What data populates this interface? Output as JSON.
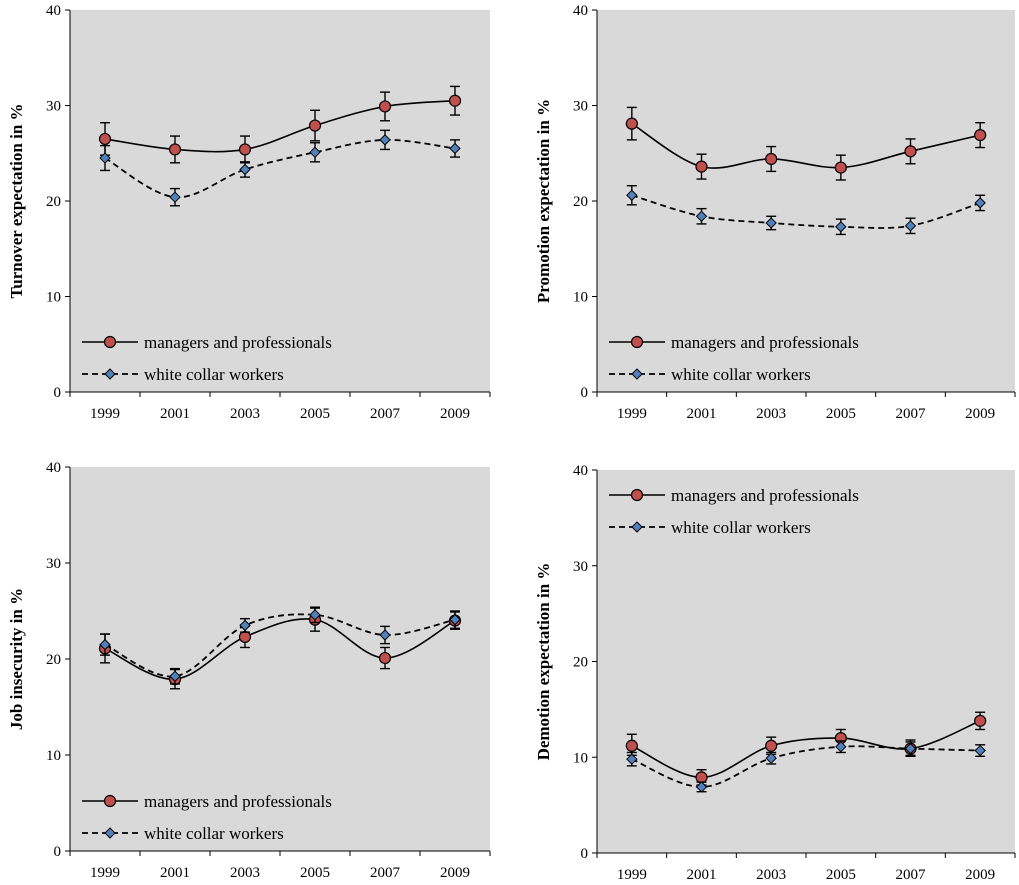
{
  "colors": {
    "plot_bg": "#d9d9d9",
    "managers_line": "#000000",
    "managers_marker_fill": "#c0504d",
    "white_collar_line": "#000000",
    "white_collar_marker_fill": "#4f81bd"
  },
  "chart_data": [
    {
      "type": "line",
      "ylabel": "Turnover expectation in %",
      "xlabel": "",
      "categories": [
        "1999",
        "2001",
        "2003",
        "2005",
        "2007",
        "2009"
      ],
      "ylim": [
        0,
        40
      ],
      "yticks": [
        "0",
        "10",
        "20",
        "30",
        "40"
      ],
      "grid": false,
      "legend_position": "bottom-left",
      "series": [
        {
          "name": "managers and professionals",
          "style": "solid",
          "marker": "circle",
          "values": [
            26.5,
            25.4,
            25.4,
            27.9,
            29.9,
            30.5
          ],
          "err_low": [
            24.8,
            24.0,
            24.0,
            26.3,
            28.4,
            29.0
          ],
          "err_high": [
            28.2,
            26.8,
            26.8,
            29.5,
            31.4,
            32.0
          ]
        },
        {
          "name": "white collar workers",
          "style": "dashed",
          "marker": "diamond",
          "values": [
            24.5,
            20.4,
            23.3,
            25.1,
            26.4,
            25.5
          ],
          "err_low": [
            23.2,
            19.5,
            22.5,
            24.1,
            25.4,
            24.6
          ],
          "err_high": [
            25.8,
            21.3,
            24.1,
            26.1,
            27.4,
            26.4
          ]
        }
      ]
    },
    {
      "type": "line",
      "ylabel": "Promotion expectation in %",
      "xlabel": "",
      "categories": [
        "1999",
        "2001",
        "2003",
        "2005",
        "2007",
        "2009"
      ],
      "ylim": [
        0,
        40
      ],
      "yticks": [
        "0",
        "10",
        "20",
        "30",
        "40"
      ],
      "grid": false,
      "legend_position": "bottom-left",
      "series": [
        {
          "name": "managers and professionals",
          "style": "solid",
          "marker": "circle",
          "values": [
            28.1,
            23.6,
            24.4,
            23.5,
            25.2,
            26.9
          ],
          "err_low": [
            26.4,
            22.3,
            23.1,
            22.2,
            23.9,
            25.6
          ],
          "err_high": [
            29.8,
            24.9,
            25.7,
            24.8,
            26.5,
            28.2
          ]
        },
        {
          "name": "white collar workers",
          "style": "dashed",
          "marker": "diamond",
          "values": [
            20.6,
            18.4,
            17.7,
            17.3,
            17.4,
            19.8
          ],
          "err_low": [
            19.6,
            17.6,
            17.0,
            16.5,
            16.6,
            19.0
          ],
          "err_high": [
            21.6,
            19.2,
            18.4,
            18.1,
            18.2,
            20.6
          ]
        }
      ]
    },
    {
      "type": "line",
      "ylabel": "Job insecurity in %",
      "xlabel": "",
      "categories": [
        "1999",
        "2001",
        "2003",
        "2005",
        "2007",
        "2009"
      ],
      "ylim": [
        0,
        40
      ],
      "yticks": [
        "0",
        "10",
        "20",
        "30",
        "40"
      ],
      "grid": false,
      "legend_position": "bottom-left",
      "series": [
        {
          "name": "managers and professionals",
          "style": "solid",
          "marker": "circle",
          "values": [
            21.1,
            17.9,
            22.3,
            24.1,
            20.1,
            24.0
          ],
          "err_low": [
            19.6,
            16.9,
            21.2,
            22.9,
            19.0,
            23.1
          ],
          "err_high": [
            22.6,
            18.9,
            23.4,
            25.3,
            21.2,
            24.9
          ]
        },
        {
          "name": "white collar workers",
          "style": "dashed",
          "marker": "diamond",
          "values": [
            21.5,
            18.2,
            23.5,
            24.6,
            22.5,
            24.1
          ],
          "err_low": [
            20.4,
            17.4,
            22.8,
            23.8,
            21.6,
            23.2
          ],
          "err_high": [
            22.6,
            19.0,
            24.2,
            25.4,
            23.4,
            25.0
          ]
        }
      ]
    },
    {
      "type": "line",
      "ylabel": "Demotion expectation in %",
      "xlabel": "",
      "categories": [
        "1999",
        "2001",
        "2003",
        "2005",
        "2007",
        "2009"
      ],
      "ylim": [
        0,
        40
      ],
      "yticks": [
        "0",
        "10",
        "20",
        "30",
        "40"
      ],
      "grid": false,
      "legend_position": "top-left",
      "series": [
        {
          "name": "managers and professionals",
          "style": "solid",
          "marker": "circle",
          "values": [
            11.2,
            7.9,
            11.2,
            12.0,
            10.9,
            13.8
          ],
          "err_low": [
            10.2,
            7.1,
            10.3,
            11.1,
            10.1,
            12.9
          ],
          "err_high": [
            12.4,
            8.7,
            12.1,
            12.9,
            11.8,
            14.7
          ]
        },
        {
          "name": "white collar workers",
          "style": "dashed",
          "marker": "diamond",
          "values": [
            9.8,
            6.9,
            9.9,
            11.1,
            10.9,
            10.7
          ],
          "err_low": [
            9.1,
            6.4,
            9.3,
            10.5,
            10.2,
            10.1
          ],
          "err_high": [
            10.5,
            7.4,
            10.5,
            11.7,
            11.6,
            11.3
          ]
        }
      ]
    }
  ]
}
